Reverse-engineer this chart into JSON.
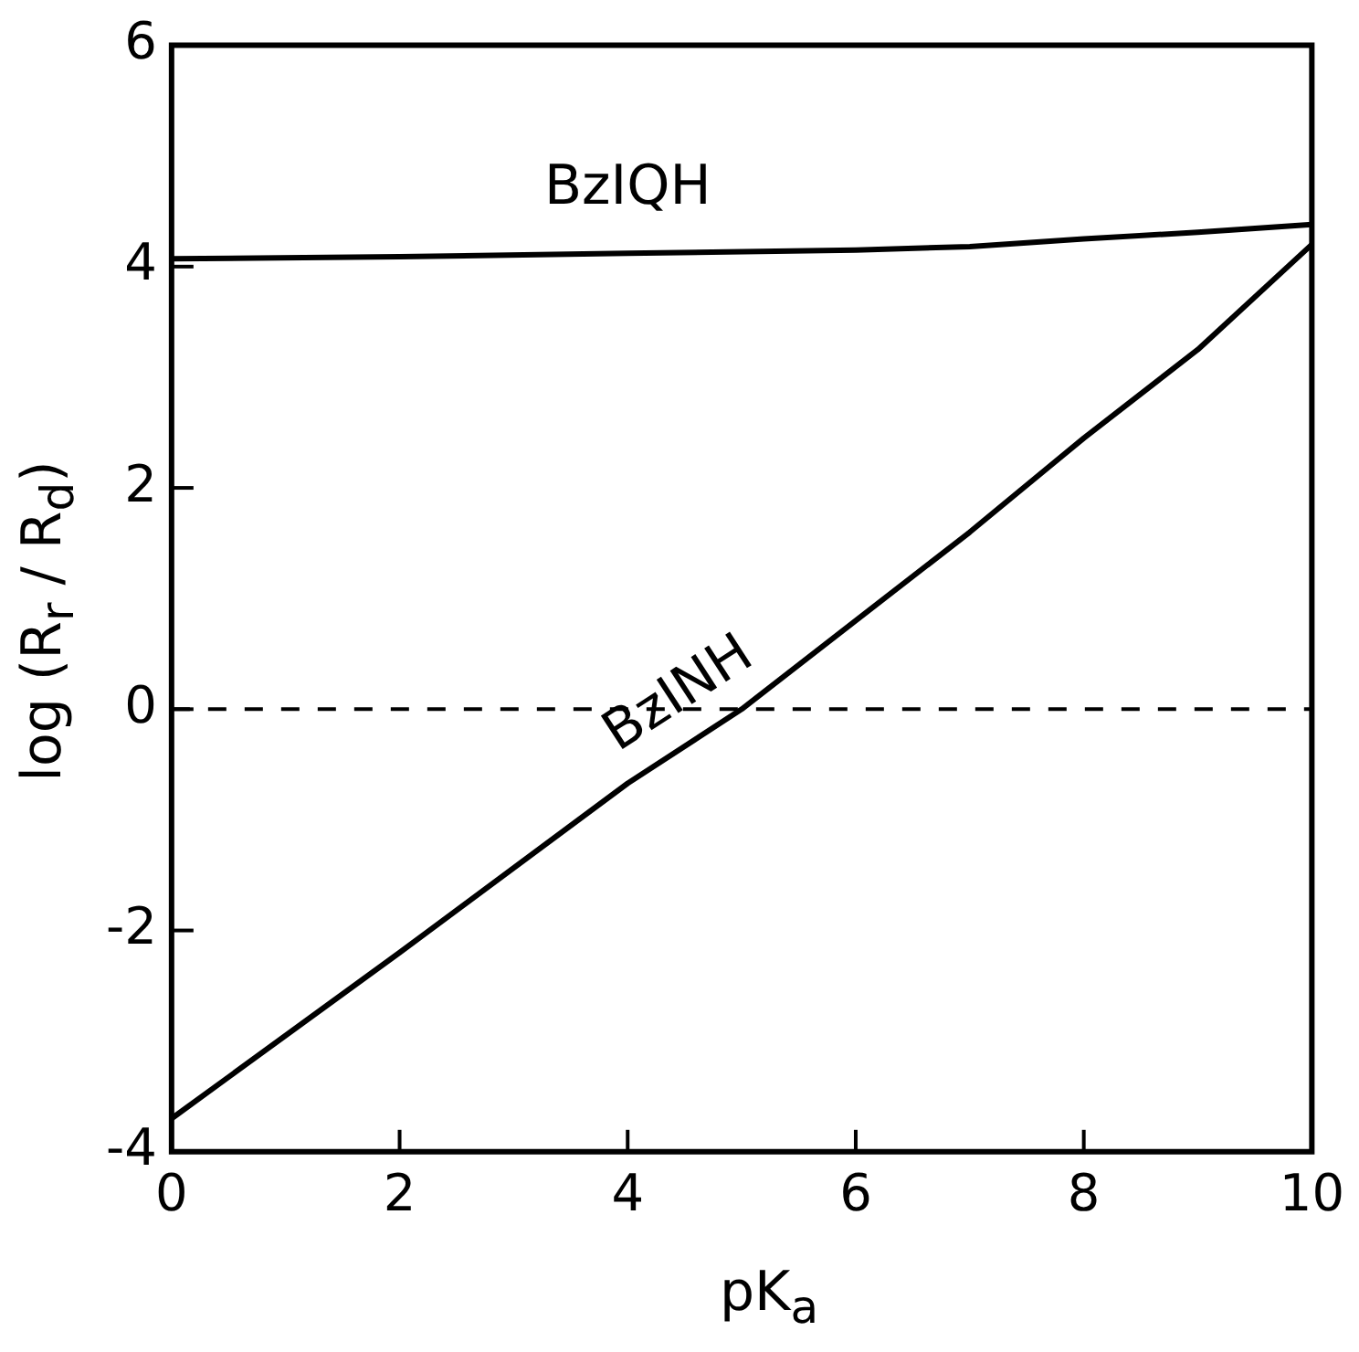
{
  "chart_data": {
    "type": "line",
    "xlabel": "pK$_{a}$",
    "ylabel": "log (R$_{r}$ / R$_{d}$)",
    "xlim": [
      0,
      10
    ],
    "ylim": [
      -4,
      6
    ],
    "xticks": [
      0,
      2,
      4,
      6,
      8,
      10
    ],
    "yticks": [
      -4,
      -2,
      0,
      2,
      4,
      6
    ],
    "grid": false,
    "legend": false,
    "marker": "none",
    "line_style": "solid",
    "series": [
      {
        "name": "BzIQH",
        "color": "#000000",
        "x": [
          0,
          2,
          4,
          6,
          7,
          8,
          9,
          10
        ],
        "values": [
          4.07,
          4.09,
          4.12,
          4.15,
          4.18,
          4.25,
          4.31,
          4.38
        ]
      },
      {
        "name": "BzINH",
        "color": "#000000",
        "x": [
          0,
          2,
          4,
          5,
          6,
          7,
          8,
          9,
          10
        ],
        "values": [
          -3.7,
          -2.2,
          -0.67,
          0,
          0.8,
          1.6,
          2.45,
          3.25,
          4.2
        ]
      }
    ],
    "ref_lines": [
      {
        "axis": "y",
        "value": 0,
        "line_style": "dashed",
        "color": "#000000"
      }
    ]
  }
}
